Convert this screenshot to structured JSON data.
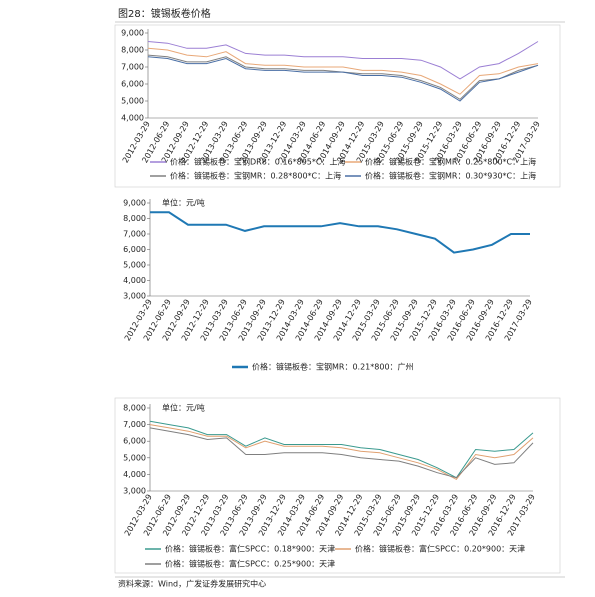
{
  "figure_title": "图28：镀锡板卷价格",
  "chart_data": [
    {
      "type": "line",
      "categories": [
        "2012-03-29",
        "2012-06-29",
        "2012-09-29",
        "2012-12-29",
        "2013-03-29",
        "2013-06-29",
        "2013-09-29",
        "2013-12-29",
        "2014-03-29",
        "2014-06-29",
        "2014-09-29",
        "2014-12-29",
        "2015-03-29",
        "2015-06-29",
        "2015-09-29",
        "2015-12-29",
        "2016-03-29",
        "2016-06-29",
        "2016-09-29",
        "2016-12-29",
        "2017-03-29"
      ],
      "ylim": [
        4000,
        9000
      ],
      "yticks": [
        {
          "value": 4000,
          "label": "4,000"
        },
        {
          "value": 5000,
          "label": "5,000"
        },
        {
          "value": 6000,
          "label": "6,000"
        },
        {
          "value": 7000,
          "label": "7,000"
        },
        {
          "value": 8000,
          "label": "8,000"
        },
        {
          "value": 9000,
          "label": "9,000"
        }
      ],
      "series": [
        {
          "name": "价格：镀锡板卷：宝钢DR8：0.16*895*C：上海",
          "color": "#9b7fd4",
          "values": [
            8500,
            8400,
            8100,
            8100,
            8300,
            7800,
            7700,
            7700,
            7600,
            7600,
            7600,
            7500,
            7500,
            7500,
            7400,
            7000,
            6300,
            7000,
            7200,
            7800,
            8500
          ]
        },
        {
          "name": "价格：镀锡板卷：宝钢MR：0.25*800*C：上海",
          "color": "#e8a878",
          "values": [
            8100,
            8000,
            7700,
            7600,
            7900,
            7200,
            7100,
            7100,
            7000,
            7000,
            7000,
            6800,
            6800,
            6700,
            6500,
            6000,
            5400,
            6500,
            6600,
            7000,
            7200
          ]
        },
        {
          "name": "价格：镀锡板卷：宝钢MR：0.28*800*C：上海",
          "color": "#808080",
          "values": [
            7700,
            7600,
            7300,
            7300,
            7600,
            7000,
            6900,
            6900,
            6800,
            6800,
            6700,
            6600,
            6600,
            6500,
            6200,
            5800,
            5100,
            6200,
            6300,
            6800,
            7100
          ]
        },
        {
          "name": "价格：镀锡板卷：宝钢MR：0.30*930*C：上海",
          "color": "#4a6fa5",
          "values": [
            7600,
            7500,
            7200,
            7200,
            7500,
            6900,
            6800,
            6800,
            6700,
            6700,
            6700,
            6500,
            6500,
            6400,
            6100,
            5700,
            5000,
            6100,
            6300,
            6700,
            7100
          ]
        }
      ]
    },
    {
      "type": "line",
      "unit": "单位：元/吨",
      "categories": [
        "2012-03-29",
        "2012-06-29",
        "2012-09-29",
        "2012-12-29",
        "2013-03-29",
        "2013-06-29",
        "2013-09-29",
        "2013-12-29",
        "2014-03-29",
        "2014-06-29",
        "2014-09-29",
        "2014-12-29",
        "2015-03-29",
        "2015-06-29",
        "2015-09-29",
        "2015-12-29",
        "2016-03-29",
        "2016-06-29",
        "2016-09-29",
        "2016-12-29",
        "2017-03-29"
      ],
      "ylim": [
        3000,
        9000
      ],
      "yticks": [
        {
          "value": 3000,
          "label": "3,000"
        },
        {
          "value": 4000,
          "label": "4,000"
        },
        {
          "value": 5000,
          "label": "5,000"
        },
        {
          "value": 6000,
          "label": "6,000"
        },
        {
          "value": 7000,
          "label": "7,000"
        },
        {
          "value": 8000,
          "label": "8,000"
        },
        {
          "value": 9000,
          "label": "9,000"
        }
      ],
      "series": [
        {
          "name": "价格：镀锡板卷：宝钢MR：0.21*800：广州",
          "color": "#1f78b4",
          "values": [
            8400,
            8400,
            7600,
            7600,
            7600,
            7200,
            7500,
            7500,
            7500,
            7500,
            7700,
            7500,
            7500,
            7300,
            7000,
            6700,
            5800,
            6000,
            6300,
            7000,
            7000
          ]
        }
      ]
    },
    {
      "type": "line",
      "unit": "单位：元/吨",
      "categories": [
        "2012-03-29",
        "2012-06-29",
        "2012-09-29",
        "2012-12-29",
        "2013-03-29",
        "2013-06-29",
        "2013-09-29",
        "2013-12-29",
        "2014-03-29",
        "2014-06-29",
        "2014-09-29",
        "2014-12-29",
        "2015-03-29",
        "2015-06-29",
        "2015-09-29",
        "2015-12-29",
        "2016-03-29",
        "2016-06-29",
        "2016-09-29",
        "2016-12-29",
        "2017-03-29"
      ],
      "ylim": [
        3000,
        8000
      ],
      "yticks": [
        {
          "value": 3000,
          "label": "3,000"
        },
        {
          "value": 4000,
          "label": "4,000"
        },
        {
          "value": 5000,
          "label": "5,000"
        },
        {
          "value": 6000,
          "label": "6,000"
        },
        {
          "value": 7000,
          "label": "7,000"
        },
        {
          "value": 8000,
          "label": "8,000"
        }
      ],
      "series": [
        {
          "name": "价格：镀锡板卷：富仁SPCC：0.18*900：天津",
          "color": "#3a9a8f",
          "values": [
            7200,
            7000,
            6800,
            6400,
            6400,
            5700,
            6200,
            5800,
            5800,
            5800,
            5800,
            5600,
            5500,
            5200,
            4900,
            4400,
            3800,
            5500,
            5400,
            5500,
            6500
          ]
        },
        {
          "name": "价格：镀锡板卷：富仁SPCC：0.20*900：天津",
          "color": "#e0a070",
          "values": [
            7000,
            6800,
            6600,
            6300,
            6300,
            5600,
            6000,
            5700,
            5700,
            5700,
            5600,
            5400,
            5300,
            5000,
            4700,
            4300,
            3700,
            5200,
            5000,
            5200,
            6200
          ]
        },
        {
          "name": "价格：镀锡板卷：富仁SPCC：0.25*900：天津",
          "color": "#7f7f7f",
          "values": [
            6800,
            6600,
            6400,
            6100,
            6200,
            5200,
            5200,
            5300,
            5300,
            5300,
            5200,
            5000,
            4900,
            4800,
            4500,
            4100,
            3800,
            5000,
            4600,
            4700,
            5900
          ]
        }
      ]
    }
  ],
  "source": "资料来源：Wind，广发证券发展研究中心"
}
